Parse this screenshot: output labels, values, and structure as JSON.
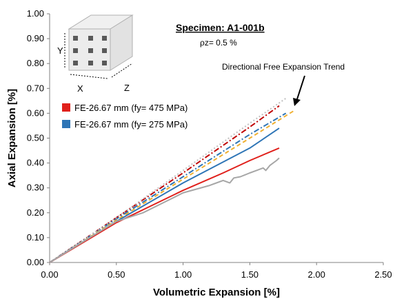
{
  "chart_data": {
    "type": "line",
    "title": "",
    "xlabel": "Volumetric Expansion [%]",
    "ylabel": "Axial Expansion [%]",
    "xlim": [
      0,
      2.5
    ],
    "ylim": [
      0,
      1.0
    ],
    "x_ticks": [
      "0.00",
      "0.50",
      "1.00",
      "1.50",
      "2.00",
      "2.50"
    ],
    "y_ticks": [
      "0.00",
      "0.10",
      "0.20",
      "0.30",
      "0.40",
      "0.50",
      "0.60",
      "0.70",
      "0.80",
      "0.90",
      "1.00"
    ],
    "grid": false,
    "legend_placement": "upper-left",
    "legend": [
      {
        "label": "FE-26.67 mm (fy= 475 MPa)",
        "color": "#e0201b"
      },
      {
        "label": "FE-26.67 mm (fy= 275 MPa)",
        "color": "#2e75b6"
      }
    ],
    "annotations": {
      "specimen": "Specimen: A1-001b",
      "rho": "ρz= 0.5 %",
      "trend_label": "Directional Free Expansion Trend",
      "cube_axes": [
        "X",
        "Y",
        "Z"
      ]
    },
    "series": [
      {
        "style": "dashdot",
        "color": "#c00000",
        "x": [
          0,
          0.5,
          1.0,
          1.5,
          1.72
        ],
        "y": [
          0,
          0.18,
          0.36,
          0.545,
          0.63
        ]
      },
      {
        "style": "dashdot",
        "color": "#2e75b6",
        "x": [
          0,
          0.5,
          1.0,
          1.5,
          1.77
        ],
        "y": [
          0,
          0.175,
          0.345,
          0.515,
          0.6
        ]
      },
      {
        "style": "dashed",
        "color": "#f0b030",
        "x": [
          0,
          0.5,
          1.0,
          1.5,
          1.83
        ],
        "y": [
          0,
          0.17,
          0.335,
          0.5,
          0.61
        ]
      },
      {
        "style": "dotted",
        "color": "#bfbfbf",
        "x": [
          0,
          0.5,
          1.0,
          1.5,
          1.77
        ],
        "y": [
          0,
          0.18,
          0.37,
          0.56,
          0.66
        ]
      },
      {
        "style": "solid",
        "color": "#2e75b6",
        "x": [
          0,
          0.5,
          1.0,
          1.5,
          1.72
        ],
        "y": [
          0,
          0.165,
          0.32,
          0.46,
          0.54
        ]
      },
      {
        "style": "solid",
        "color": "#e0201b",
        "x": [
          0,
          0.5,
          1.0,
          1.3,
          1.5,
          1.72
        ],
        "y": [
          0,
          0.16,
          0.29,
          0.36,
          0.41,
          0.46
        ]
      },
      {
        "style": "solid",
        "color": "#a6a6a6",
        "x": [
          0,
          0.3,
          0.5,
          0.7,
          0.85,
          1.0,
          1.2,
          1.25,
          1.3,
          1.35,
          1.38,
          1.43,
          1.5,
          1.55,
          1.6,
          1.62,
          1.65,
          1.7,
          1.72
        ],
        "y": [
          0,
          0.1,
          0.165,
          0.2,
          0.24,
          0.28,
          0.31,
          0.32,
          0.33,
          0.32,
          0.34,
          0.345,
          0.36,
          0.37,
          0.38,
          0.37,
          0.39,
          0.41,
          0.42
        ]
      }
    ]
  }
}
